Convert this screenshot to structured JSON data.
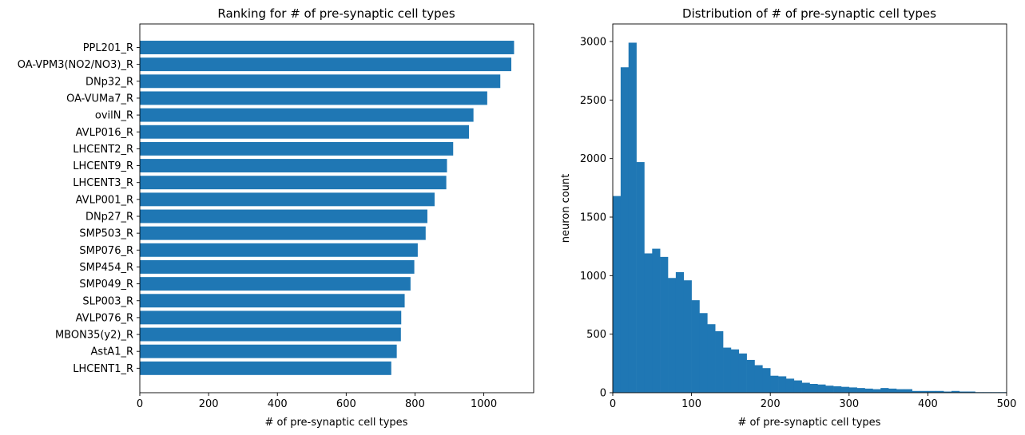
{
  "chart_data": [
    {
      "type": "bar",
      "orientation": "horizontal",
      "title": "Ranking for # of pre-synaptic cell types",
      "xlabel": "# of pre-synaptic cell types",
      "ylabel": "",
      "xlim": [
        0,
        1145
      ],
      "xticks": [
        0,
        200,
        400,
        600,
        800,
        1000
      ],
      "color": "#1f77b4",
      "categories": [
        "PPL201_R",
        "OA-VPM3(NO2/NO3)_R",
        "DNp32_R",
        "OA-VUMa7_R",
        "ovilN_R",
        "AVLP016_R",
        "LHCENT2_R",
        "LHCENT9_R",
        "LHCENT3_R",
        "AVLP001_R",
        "DNp27_R",
        "SMP503_R",
        "SMP076_R",
        "SMP454_R",
        "SMP049_R",
        "SLP003_R",
        "AVLP076_R",
        "MBON35(y2)_R",
        "AstA1_R",
        "LHCENT1_R"
      ],
      "values": [
        1088,
        1080,
        1048,
        1010,
        970,
        957,
        911,
        893,
        891,
        857,
        836,
        831,
        808,
        798,
        787,
        770,
        760,
        759,
        747,
        731
      ]
    },
    {
      "type": "bar",
      "subtype": "histogram",
      "title": "Distribution of # of pre-synaptic cell types",
      "xlabel": "# of pre-synaptic cell types",
      "ylabel": "neuron count",
      "xlim": [
        0,
        500
      ],
      "ylim": [
        0,
        3150
      ],
      "xticks": [
        0,
        100,
        200,
        300,
        400,
        500
      ],
      "yticks": [
        0,
        500,
        1000,
        1500,
        2000,
        2500,
        3000
      ],
      "color": "#1f77b4",
      "bin_width": 10,
      "bin_starts": [
        0,
        10,
        20,
        30,
        40,
        50,
        60,
        70,
        80,
        90,
        100,
        110,
        120,
        130,
        140,
        150,
        160,
        170,
        180,
        190,
        200,
        210,
        220,
        230,
        240,
        250,
        260,
        270,
        280,
        290,
        300,
        310,
        320,
        330,
        340,
        350,
        360,
        370,
        380,
        390,
        400,
        410,
        420,
        430,
        440,
        450,
        460,
        470,
        480,
        490
      ],
      "values": [
        1680,
        2780,
        2990,
        1970,
        1190,
        1230,
        1160,
        980,
        1030,
        960,
        790,
        680,
        585,
        525,
        385,
        370,
        335,
        280,
        235,
        210,
        145,
        140,
        120,
        105,
        85,
        75,
        70,
        60,
        55,
        50,
        45,
        40,
        35,
        30,
        40,
        35,
        30,
        30,
        15,
        15,
        15,
        15,
        10,
        15,
        10,
        10,
        5,
        5,
        5,
        5
      ]
    }
  ]
}
